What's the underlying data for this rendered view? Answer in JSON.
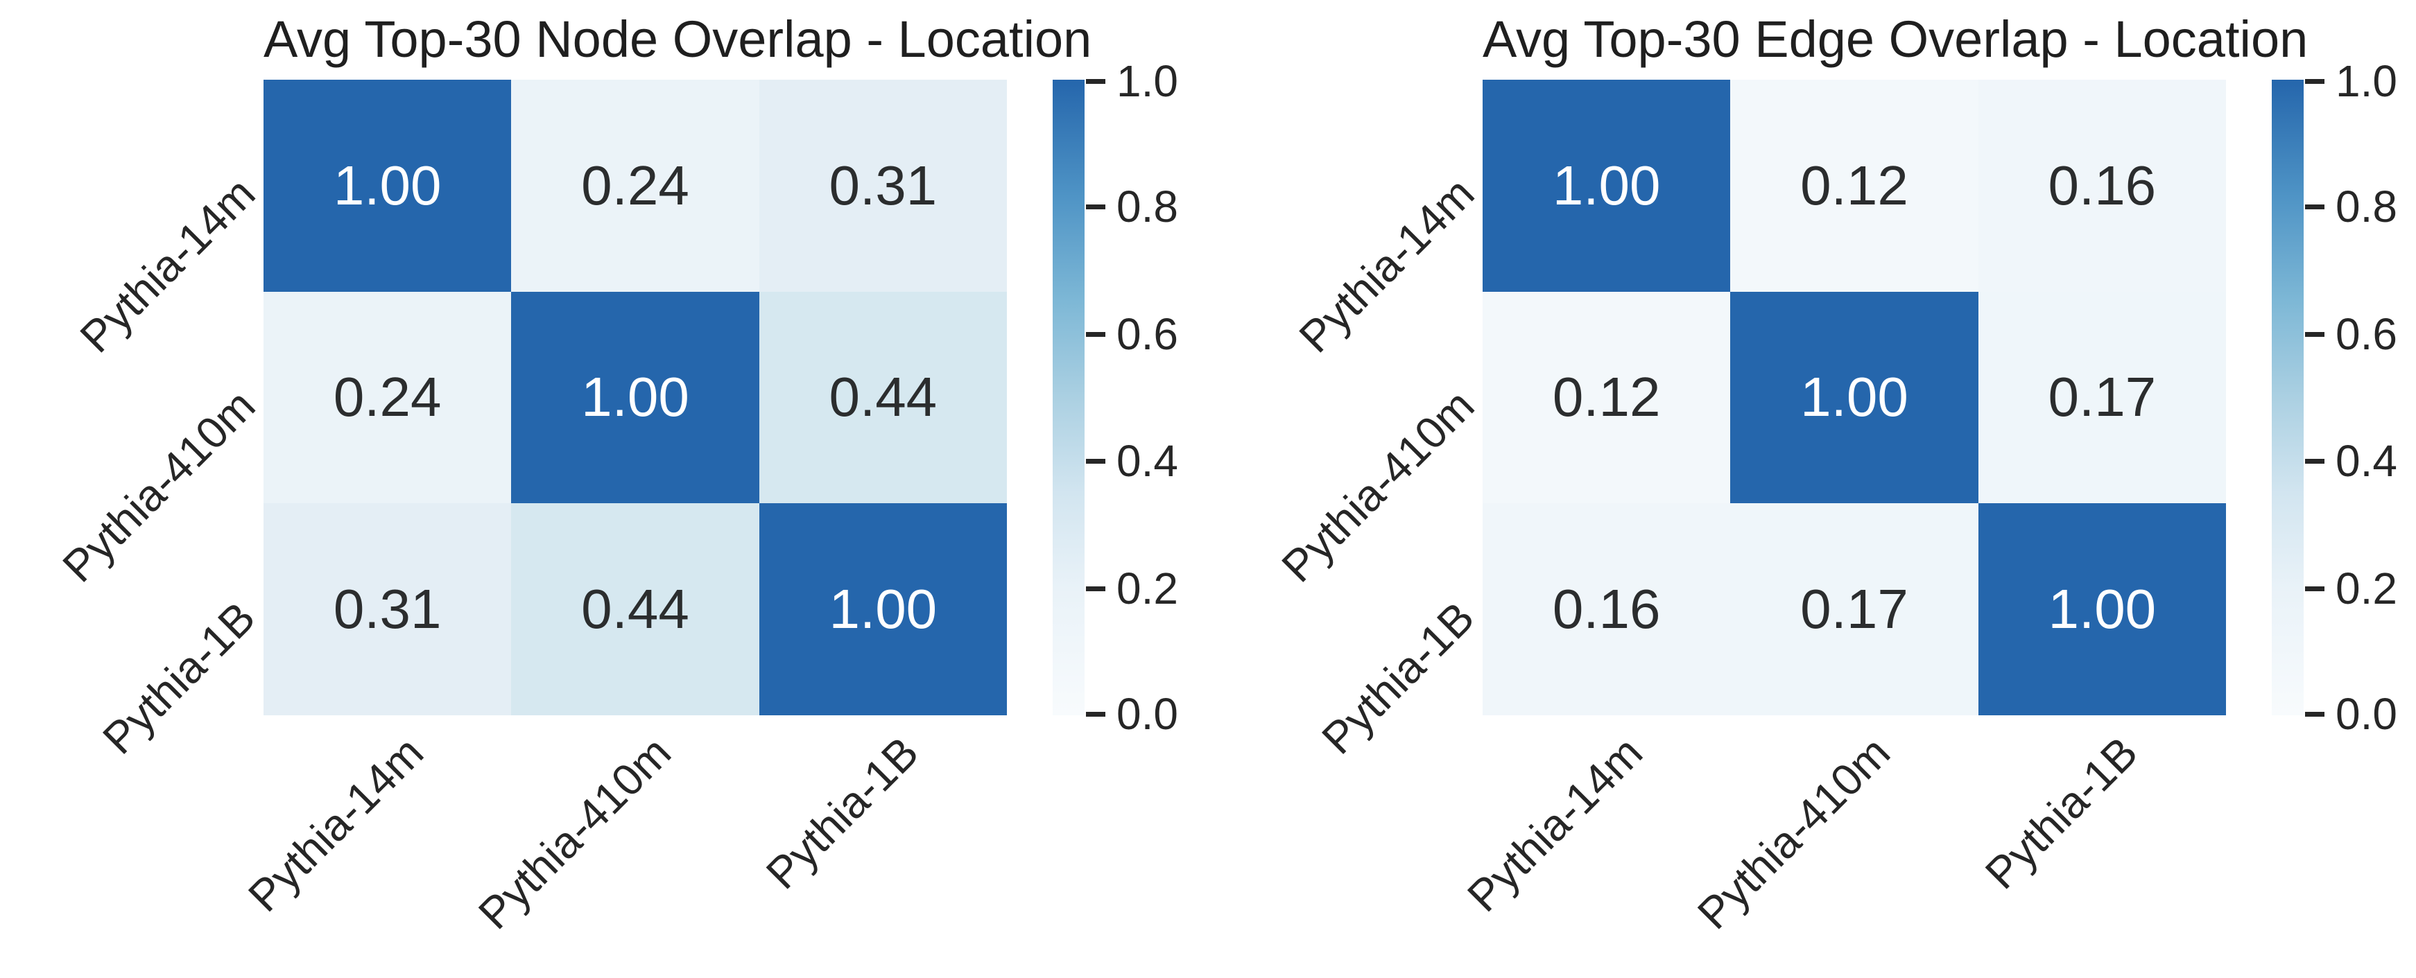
{
  "figure": {
    "background": "#ffffff",
    "accent_blue": "#2566ac",
    "text_color": "#262626"
  },
  "panels": [
    {
      "title": "Avg Top-30 Node Overlap - Location",
      "row_labels": [
        "Pythia-14m",
        "Pythia-410m",
        "Pythia-1B"
      ],
      "col_labels": [
        "Pythia-14m",
        "Pythia-410m",
        "Pythia-1B"
      ],
      "matrix": [
        [
          "1.00",
          "0.24",
          "0.31"
        ],
        [
          "0.24",
          "1.00",
          "0.44"
        ],
        [
          "0.31",
          "0.44",
          "1.00"
        ]
      ],
      "cell_colors": [
        [
          "#2566ac",
          "#ebf3f8",
          "#e4eef5"
        ],
        [
          "#ebf3f8",
          "#2566ac",
          "#d6e8f0"
        ],
        [
          "#e4eef5",
          "#d6e8f0",
          "#2566ac"
        ]
      ],
      "cell_text_colors": [
        [
          "#ffffff",
          "#2b2d2e",
          "#2b2d2e"
        ],
        [
          "#2b2d2e",
          "#ffffff",
          "#2b2d2e"
        ],
        [
          "#2b2d2e",
          "#2b2d2e",
          "#ffffff"
        ]
      ]
    },
    {
      "title": "Avg Top-30 Edge Overlap - Location",
      "row_labels": [
        "Pythia-14m",
        "Pythia-410m",
        "Pythia-1B"
      ],
      "col_labels": [
        "Pythia-14m",
        "Pythia-410m",
        "Pythia-1B"
      ],
      "matrix": [
        [
          "1.00",
          "0.12",
          "0.16"
        ],
        [
          "0.12",
          "1.00",
          "0.17"
        ],
        [
          "0.16",
          "0.17",
          "1.00"
        ]
      ],
      "cell_colors": [
        [
          "#2566ac",
          "#f3f8fb",
          "#f0f6fa"
        ],
        [
          "#f3f8fb",
          "#2566ac",
          "#eff6fa"
        ],
        [
          "#f0f6fa",
          "#eff6fa",
          "#2566ac"
        ]
      ],
      "cell_text_colors": [
        [
          "#ffffff",
          "#2b2d2e",
          "#2b2d2e"
        ],
        [
          "#2b2d2e",
          "#ffffff",
          "#2b2d2e"
        ],
        [
          "#2b2d2e",
          "#2b2d2e",
          "#ffffff"
        ]
      ]
    }
  ],
  "colorbar": {
    "tick_labels": [
      "1.0",
      "0.8",
      "0.6",
      "0.4",
      "0.2",
      "0.0"
    ],
    "range": [
      0.0,
      1.0
    ],
    "gradient_stops": [
      "#2566ac 0%",
      "#4e93c5 18%",
      "#7eb8d6 35%",
      "#abd0e2 50%",
      "#d2e5f0 65%",
      "#e9f2f8 80%",
      "#f8fbfd 100%"
    ]
  },
  "chart_data": [
    {
      "type": "heatmap",
      "title": "Avg Top-30 Node Overlap - Location",
      "x_tick_labels": [
        "Pythia-14m",
        "Pythia-410m",
        "Pythia-1B"
      ],
      "y_tick_labels": [
        "Pythia-14m",
        "Pythia-410m",
        "Pythia-1B"
      ],
      "values": [
        [
          1.0,
          0.24,
          0.31
        ],
        [
          0.24,
          1.0,
          0.44
        ],
        [
          0.31,
          0.44,
          1.0
        ]
      ],
      "annotations": [
        [
          "1.00",
          "0.24",
          "0.31"
        ],
        [
          "0.24",
          "1.00",
          "0.44"
        ],
        [
          "0.31",
          "0.44",
          "1.00"
        ]
      ],
      "colormap": "Blues",
      "colorbar_ticks": [
        1.0,
        0.8,
        0.6,
        0.4,
        0.2,
        0.0
      ],
      "vmin": 0.0,
      "vmax": 1.0,
      "tick_label_rotation_deg": 45,
      "legend_position": "right-colorbar",
      "grid": false
    },
    {
      "type": "heatmap",
      "title": "Avg Top-30 Edge Overlap - Location",
      "x_tick_labels": [
        "Pythia-14m",
        "Pythia-410m",
        "Pythia-1B"
      ],
      "y_tick_labels": [
        "Pythia-14m",
        "Pythia-410m",
        "Pythia-1B"
      ],
      "values": [
        [
          1.0,
          0.12,
          0.16
        ],
        [
          0.12,
          1.0,
          0.17
        ],
        [
          0.16,
          0.17,
          1.0
        ]
      ],
      "annotations": [
        [
          "1.00",
          "0.12",
          "0.16"
        ],
        [
          "0.12",
          "1.00",
          "0.17"
        ],
        [
          "0.16",
          "0.17",
          "1.00"
        ]
      ],
      "colormap": "Blues",
      "colorbar_ticks": [
        1.0,
        0.8,
        0.6,
        0.4,
        0.2,
        0.0
      ],
      "vmin": 0.0,
      "vmax": 1.0,
      "tick_label_rotation_deg": 45,
      "legend_position": "right-colorbar",
      "grid": false
    }
  ]
}
